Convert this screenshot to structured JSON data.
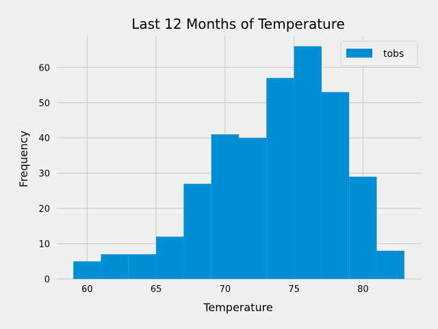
{
  "chart_data": {
    "type": "bar",
    "title": "Last 12 Months of Temperature",
    "xlabel": "Temperature",
    "ylabel": "Frequency",
    "xlim": [
      57.8,
      84.2
    ],
    "ylim": [
      0,
      69
    ],
    "x_ticks": [
      60,
      65,
      70,
      75,
      80
    ],
    "y_ticks": [
      0,
      10,
      20,
      30,
      40,
      50,
      60
    ],
    "grid": true,
    "legend_position": "top-right",
    "series": [
      {
        "name": "tobs",
        "color": "#008fd5",
        "bins": [
          {
            "x0": 59,
            "x1": 61,
            "value": 5
          },
          {
            "x0": 61,
            "x1": 63,
            "value": 7
          },
          {
            "x0": 63,
            "x1": 65,
            "value": 7
          },
          {
            "x0": 65,
            "x1": 67,
            "value": 12
          },
          {
            "x0": 67,
            "x1": 69,
            "value": 27
          },
          {
            "x0": 69,
            "x1": 71,
            "value": 41
          },
          {
            "x0": 71,
            "x1": 73,
            "value": 40
          },
          {
            "x0": 73,
            "x1": 75,
            "value": 57
          },
          {
            "x0": 75,
            "x1": 77,
            "value": 66
          },
          {
            "x0": 77,
            "x1": 79,
            "value": 53
          },
          {
            "x0": 79,
            "x1": 81,
            "value": 29
          },
          {
            "x0": 81,
            "x1": 83,
            "value": 8
          }
        ]
      }
    ]
  }
}
